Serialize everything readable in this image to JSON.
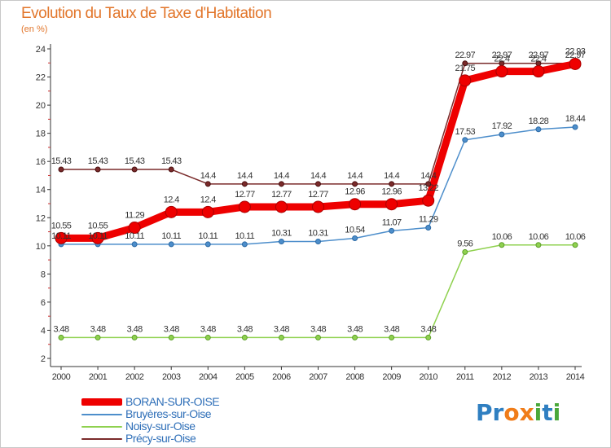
{
  "title": "Evolution du Taux de Taxe d'Habitation",
  "unit_label": "(en %)",
  "brand": {
    "text": "Proxiti",
    "letters": [
      {
        "ch": "P",
        "color": "#2f7fc1"
      },
      {
        "ch": "r",
        "color": "#2f7fc1"
      },
      {
        "ch": "o",
        "color": "#f07c18"
      },
      {
        "ch": "x",
        "color": "#f07c18"
      },
      {
        "ch": "i",
        "color": "#4aa83a"
      },
      {
        "ch": "t",
        "color": "#2f7fc1"
      },
      {
        "ch": "i",
        "color": "#4aa83a"
      }
    ]
  },
  "chart_data": {
    "type": "line",
    "x": [
      "2000",
      "2001",
      "2002",
      "2003",
      "2004",
      "2005",
      "2006",
      "2007",
      "2008",
      "2009",
      "2010",
      "2011",
      "2012",
      "2013",
      "2014"
    ],
    "ylim": [
      2,
      24
    ],
    "yticks": [
      2,
      4,
      6,
      8,
      10,
      12,
      14,
      16,
      18,
      20,
      22,
      24
    ],
    "grid": false,
    "legend_position": "bottom-left",
    "series": [
      {
        "name": "BORAN-SUR-OISE",
        "color": "#ee0000",
        "width": 9,
        "values": [
          10.55,
          10.55,
          11.29,
          12.4,
          12.4,
          12.77,
          12.77,
          12.77,
          12.96,
          12.96,
          13.22,
          21.75,
          22.4,
          22.4,
          22.93
        ],
        "labels": [
          "10.55",
          "10.55",
          "11.29",
          "12.4",
          "12.4",
          "12.77",
          "12.77",
          "12.77",
          "12.96",
          "12.96",
          "13.22",
          "21.75",
          "22.4",
          "22.4",
          "22.93"
        ]
      },
      {
        "name": "Bruyères-sur-Oise",
        "color": "#4d8ecb",
        "width": 1.5,
        "values": [
          10.11,
          10.11,
          10.11,
          10.11,
          10.11,
          10.11,
          10.31,
          10.31,
          10.54,
          11.07,
          11.29,
          17.53,
          17.92,
          18.28,
          18.44
        ],
        "labels": [
          "10.11",
          "10.11",
          "10.11",
          "10.11",
          "10.11",
          "10.11",
          "10.31",
          "10.31",
          "10.54",
          "11.07",
          "11.29",
          "17.53",
          "17.92",
          "18.28",
          "18.44"
        ]
      },
      {
        "name": "Noisy-sur-Oise",
        "color": "#8fd14f",
        "width": 1.5,
        "values": [
          3.48,
          3.48,
          3.48,
          3.48,
          3.48,
          3.48,
          3.48,
          3.48,
          3.48,
          3.48,
          3.48,
          9.56,
          10.06,
          10.06,
          10.06
        ],
        "labels": [
          "3.48",
          "3.48",
          "3.48",
          "3.48",
          "3.48",
          "3.48",
          "3.48",
          "3.48",
          "3.48",
          "3.48",
          "3.48",
          "9.56",
          "10.06",
          "10.06",
          "10.06"
        ]
      },
      {
        "name": "Précy-sur-Oise",
        "color": "#7a2a2a",
        "width": 1.5,
        "values": [
          15.43,
          15.43,
          15.43,
          15.43,
          14.4,
          14.4,
          14.4,
          14.4,
          14.4,
          14.4,
          14.4,
          22.97,
          22.97,
          22.97,
          22.97
        ],
        "labels": [
          "15.43",
          "15.43",
          "15.43",
          "15.43",
          "14.4",
          "14.4",
          "14.4",
          "14.4",
          "14.4",
          "14.4",
          "14.4",
          "22.97",
          "22.97",
          "22.97",
          "22.97"
        ]
      }
    ]
  }
}
